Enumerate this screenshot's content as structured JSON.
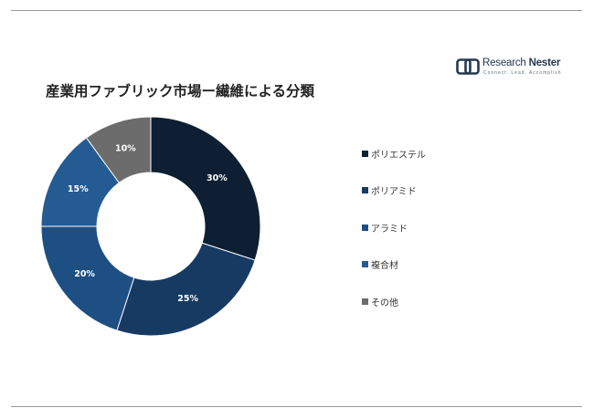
{
  "header": {
    "title": "産業用ファブリック市場ー繊維による分類"
  },
  "logo": {
    "name_part1": "Research",
    "name_part2": "Nester",
    "tagline": "Connect. Lead. Accomplish"
  },
  "chart_data": {
    "type": "pie",
    "variant": "donut",
    "title": "産業用ファブリック市場ー繊維による分類",
    "categories": [
      "ポリエステル",
      "ポリアミド",
      "アラミド",
      "複合材",
      "その他"
    ],
    "values": [
      30,
      25,
      20,
      15,
      10
    ],
    "labels": [
      "30%",
      "25%",
      "20%",
      "15%",
      "10%"
    ],
    "colors": [
      "#0e1f33",
      "#173a63",
      "#1e4f82",
      "#245b92",
      "#6c6c6c"
    ],
    "legend_position": "right"
  }
}
